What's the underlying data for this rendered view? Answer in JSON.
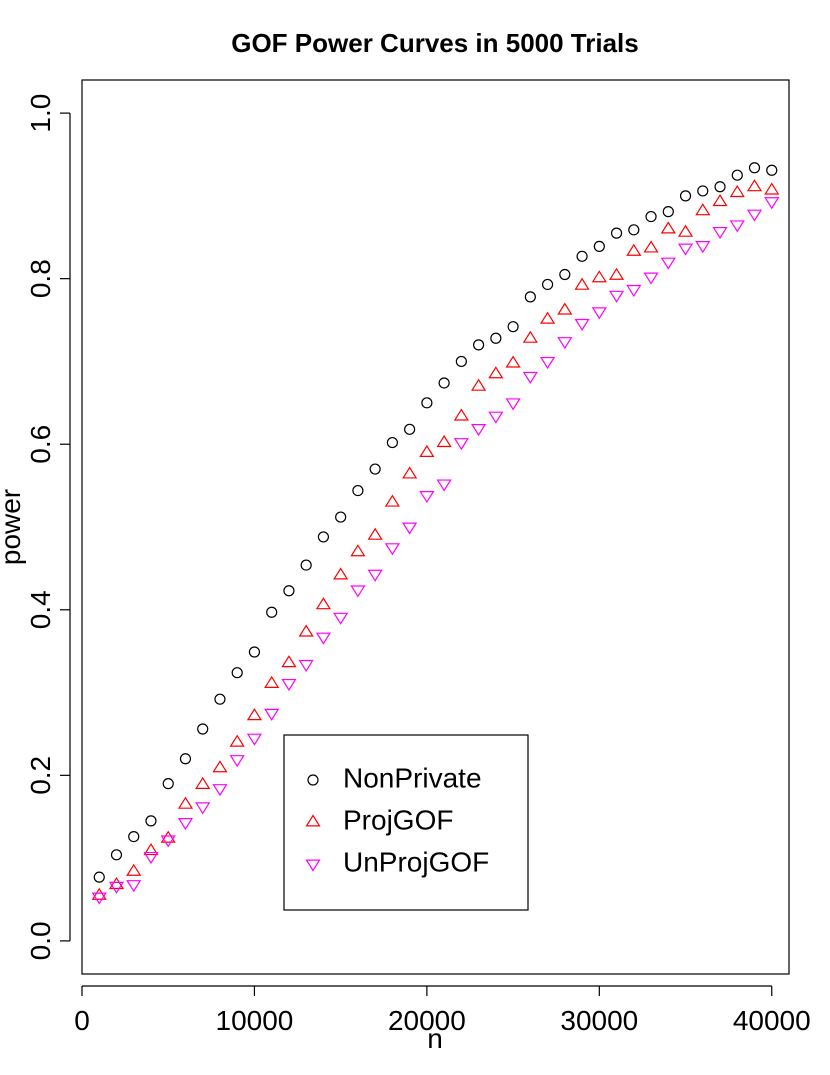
{
  "chart_data": {
    "type": "scatter",
    "title": "GOF Power Curves in  5000  Trials",
    "xlabel": "n",
    "ylabel": "power",
    "xlim": [
      0,
      41000
    ],
    "ylim": [
      -0.04,
      1.04
    ],
    "xticks": [
      0,
      10000,
      20000,
      30000,
      40000
    ],
    "xtick_labels": [
      "0",
      "10000",
      "20000",
      "30000",
      "40000"
    ],
    "yticks": [
      0.0,
      0.2,
      0.4,
      0.6,
      0.8,
      1.0
    ],
    "ytick_labels": [
      "0.0",
      "0.2",
      "0.4",
      "0.6",
      "0.8",
      "1.0"
    ],
    "grid": false,
    "legend_position": "bottom-center",
    "x": [
      1000,
      2000,
      3000,
      4000,
      5000,
      6000,
      7000,
      8000,
      9000,
      10000,
      11000,
      12000,
      13000,
      14000,
      15000,
      16000,
      17000,
      18000,
      19000,
      20000,
      21000,
      22000,
      23000,
      24000,
      25000,
      26000,
      27000,
      28000,
      29000,
      30000,
      31000,
      32000,
      33000,
      34000,
      35000,
      36000,
      37000,
      38000,
      39000,
      40000
    ],
    "series": [
      {
        "name": "NonPrivate",
        "marker": "circle",
        "color": "#000000",
        "values": [
          0.077,
          0.104,
          0.126,
          0.145,
          0.19,
          0.22,
          0.256,
          0.292,
          0.324,
          0.349,
          0.397,
          0.423,
          0.454,
          0.488,
          0.512,
          0.544,
          0.57,
          0.602,
          0.618,
          0.65,
          0.674,
          0.7,
          0.72,
          0.728,
          0.742,
          0.778,
          0.793,
          0.805,
          0.827,
          0.839,
          0.855,
          0.859,
          0.875,
          0.881,
          0.9,
          0.906,
          0.911,
          0.925,
          0.934,
          0.931
        ]
      },
      {
        "name": "ProjGOF",
        "marker": "triangle-up",
        "color": "#ff0000",
        "values": [
          0.055,
          0.068,
          0.084,
          0.109,
          0.124,
          0.165,
          0.189,
          0.209,
          0.24,
          0.272,
          0.311,
          0.336,
          0.373,
          0.406,
          0.442,
          0.47,
          0.49,
          0.53,
          0.564,
          0.59,
          0.602,
          0.634,
          0.67,
          0.685,
          0.698,
          0.728,
          0.751,
          0.762,
          0.792,
          0.801,
          0.804,
          0.833,
          0.837,
          0.86,
          0.856,
          0.882,
          0.893,
          0.904,
          0.911,
          0.907
        ]
      },
      {
        "name": "UnProjGOF",
        "marker": "triangle-down",
        "color": "#ff00ff",
        "values": [
          0.053,
          0.066,
          0.068,
          0.102,
          0.122,
          0.143,
          0.162,
          0.184,
          0.219,
          0.245,
          0.275,
          0.311,
          0.334,
          0.367,
          0.391,
          0.424,
          0.443,
          0.475,
          0.5,
          0.538,
          0.552,
          0.602,
          0.619,
          0.634,
          0.65,
          0.682,
          0.7,
          0.724,
          0.746,
          0.76,
          0.78,
          0.787,
          0.802,
          0.82,
          0.837,
          0.84,
          0.857,
          0.865,
          0.878,
          0.893
        ]
      }
    ]
  }
}
